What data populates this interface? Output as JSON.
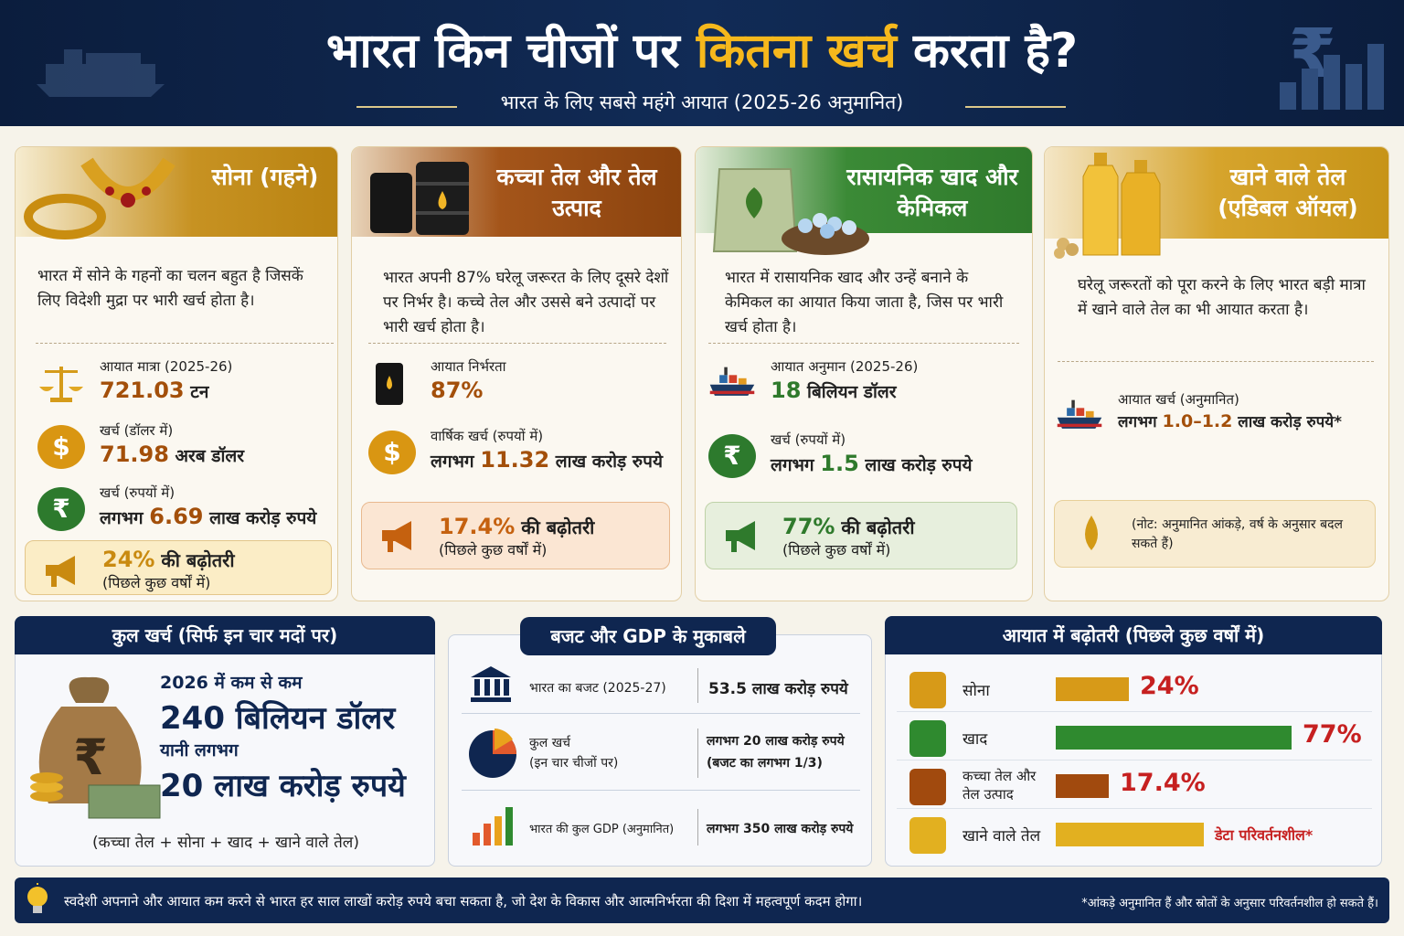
{
  "header": {
    "title_part1": "भारत किन चीजों पर ",
    "title_highlight": "कितना खर्च",
    "title_part2": " करता है?",
    "subtitle": "भारत के लिए सबसे महंगे आयात  (2025-26 अनुमानित)"
  },
  "cards": [
    {
      "title": "सोना (गहने)",
      "desc": "भारत में सोने के गहनों का चलन बहुत है जिसकें लिए विदेशी मुद्रा पर भारी खर्च होता है।",
      "stats": [
        {
          "icon": "scale-icon",
          "label": "आयात मात्रा (2025-26)",
          "value": "721.03",
          "unit": " टन"
        },
        {
          "icon": "dollar-icon",
          "label": "खर्च (डॉलर में)",
          "value": "71.98",
          "unit": " अरब डॉलर"
        },
        {
          "icon": "rupee-icon",
          "label": "खर्च (रुपयों में)",
          "prefix": "लगभग ",
          "value": "6.69",
          "unit": " लाख करोड़ रुपये"
        }
      ],
      "growth": {
        "value": "24%",
        "text": " की बढ़ोतरी",
        "note": "(पिछले कुछ वर्षों में)"
      }
    },
    {
      "title": "कच्चा तेल और तेल उत्पाद",
      "desc": "भारत अपनी 87% घरेलू जरूरत के लिए दूसरे देशों पर निर्भर है। कच्चे तेल और उससे बने उत्पादों पर भारी खर्च होता है।",
      "stats": [
        {
          "icon": "oil-barrel-icon",
          "label": "आयात निर्भरता",
          "value": "87%",
          "unit": ""
        },
        {
          "icon": "dollar-icon",
          "label": "वार्षिक खर्च (रुपयों में)",
          "prefix": "लगभग ",
          "value": "11.32",
          "unit": " लाख करोड़ रुपये"
        }
      ],
      "growth": {
        "value": "17.4%",
        "text": " की बढ़ोतरी",
        "note": "(पिछले कुछ वर्षों में)"
      }
    },
    {
      "title": "रासायनिक खाद और केमिकल",
      "desc": "भारत में रासायनिक खाद और उन्हें बनाने के केमिकल का आयात किया जाता है, जिस पर भारी खर्च होता है।",
      "stats": [
        {
          "icon": "cargo-ship-icon",
          "label": "आयात अनुमान (2025-26)",
          "value": "18",
          "unit": " बिलियन डॉलर"
        },
        {
          "icon": "rupee-icon",
          "label": "खर्च (रुपयों में)",
          "prefix": "लगभग ",
          "value": "1.5",
          "unit": " लाख करोड़ रुपये"
        }
      ],
      "growth": {
        "value": "77%",
        "text": " की बढ़ोतरी",
        "note": "(पिछले कुछ वर्षों में)"
      }
    },
    {
      "title": "खाने वाले तेल (एडिबल ऑयल)",
      "desc": "घरेलू जरूरतों को पूरा करने के लिए भारत बड़ी मात्रा में खाने वाले तेल का भी आयात करता है।",
      "stats": [
        {
          "icon": "cargo-ship-icon",
          "label": "आयात खर्च (अनुमानित)",
          "prefix": "लगभग ",
          "value": "1.0–1.2",
          "unit": " लाख करोड़ रुपये*"
        }
      ],
      "note": "(नोट: अनुमानित आंकड़े, वर्ष के अनुसार बदल सकते हैं)"
    }
  ],
  "total": {
    "header": "कुल खर्च (सिर्फ इन चार मदों पर)",
    "line1": "2026 में कम से कम",
    "line2": "240 बिलियन डॉलर",
    "line3": "यानी लगभग",
    "line4": "20 लाख करोड़ रुपये",
    "formula": "(कच्चा तेल + सोना + खाद + खाने वाले तेल)"
  },
  "budget": {
    "header": "बजट और GDP के मुकाबले",
    "rows": [
      {
        "icon": "bank-icon",
        "label": "भारत का बजट (2025-27)",
        "value": "53.5 लाख करोड़ रुपये"
      },
      {
        "icon": "pie-chart-icon",
        "label": "कुल खर्च",
        "label2": "(इन चार चीजों पर)",
        "value": "लगभग 20 लाख करोड़ रुपये",
        "value2": "(बजट का लगभग 1/3)"
      },
      {
        "icon": "bar-chart-icon",
        "label": "भारत की कुल GDP (अनुमानित)",
        "value": "लगभग 350 लाख करोड़ रुपये"
      }
    ]
  },
  "growth_chart": {
    "header": "आयात में बढ़ोतरी (पिछले कुछ वर्षों में)",
    "items": [
      {
        "label": "सोना",
        "value": 24,
        "display": "24%",
        "color": "#d79a18"
      },
      {
        "label": "खाद",
        "value": 77,
        "display": "77%",
        "color": "#2f8a2f"
      },
      {
        "label": "कच्चा तेल और",
        "label2": "तेल उत्पाद",
        "value": 17.4,
        "display": "17.4%",
        "color": "#a14a0e"
      },
      {
        "label": "खाने वाले तेल",
        "value": null,
        "display": "डेटा परिवर्तनशील*",
        "color": "#e2b020"
      }
    ]
  },
  "footer": {
    "text": "स्वदेशी अपनाने और आयात कम करने से भारत हर साल लाखों करोड़ रुपये बचा सकता है, जो देश के विकास और आत्मनिर्भरता की दिशा में महत्वपूर्ण कदम होगा।",
    "note": "*आंकड़े अनुमानित हैं और स्रोतों के अनुसार परिवर्तनशील हो सकते हैं।"
  }
}
